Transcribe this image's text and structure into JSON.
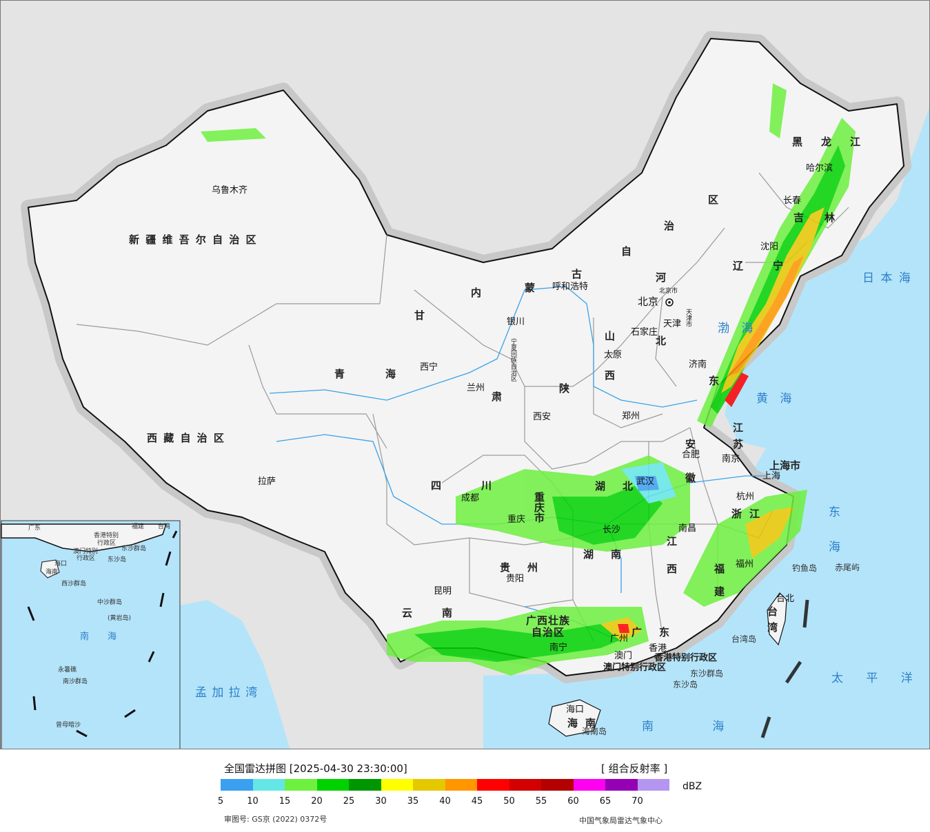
{
  "colors": {
    "ocean": "#b4e4fa",
    "outside": "#e4e4e4",
    "land": "#f4f4f4",
    "border": "#111111",
    "province_line": "#9a9a9a",
    "river": "#3aa2e8"
  },
  "provinces": [
    "新 疆 维 吾 尔 自 治 区",
    "西 藏 自 治 区",
    "青",
    "海",
    "甘",
    "肃",
    "内",
    "蒙",
    "古",
    "自",
    "治",
    "区",
    "黑",
    "龙",
    "江",
    "吉",
    "林",
    "辽",
    "宁",
    "河",
    "北",
    "山",
    "西",
    "东",
    "陕",
    "四",
    "川",
    "云",
    "南",
    "贵",
    "州",
    "湖",
    "北",
    "湖",
    "南",
    "江",
    "西",
    "安",
    "徽",
    "江",
    "苏",
    "浙",
    "江",
    "福",
    "建",
    "广",
    "东",
    "广西壮族",
    "自治区",
    "重庆市",
    "上海市",
    "宁夏回族自治区",
    "海",
    "南",
    "台",
    "湾"
  ],
  "cities": [
    "乌鲁木齐",
    "拉萨",
    "西宁",
    "兰州",
    "银川",
    "呼和浩特",
    "北京",
    "北京市",
    "天津",
    "天津市",
    "石家庄",
    "太原",
    "济南",
    "郑州",
    "西安",
    "成都",
    "重庆",
    "昆明",
    "贵阳",
    "南宁",
    "广州",
    "长沙",
    "武汉",
    "南昌",
    "合肥",
    "南京",
    "上海",
    "杭州",
    "福州",
    "台北",
    "哈尔滨",
    "长春",
    "沈阳",
    "香港",
    "澳门",
    "海口",
    "香港特别行政区",
    "澳门特别行政区"
  ],
  "seas": [
    "渤 海",
    "黄 海",
    "日 本 海",
    "东 海",
    "南 海",
    "太 平 洋",
    "孟 加 拉 湾"
  ],
  "islands": [
    "钓鱼岛",
    "赤尾屿",
    "台湾岛",
    "东沙群岛",
    "东沙岛",
    "海南岛"
  ],
  "inset": {
    "labels": [
      "广东",
      "福建",
      "台湾",
      "香港特别",
      "行政区",
      "澳门特别",
      "行政区",
      "东沙群岛",
      "东沙岛",
      "海口",
      "海南",
      "西沙群岛",
      "中沙群岛",
      "(黄岩岛)",
      "南",
      "海",
      "永暑礁",
      "南沙群岛",
      "曾母暗沙"
    ]
  },
  "legend": {
    "title": "全国雷达拼图 [2025-04-30 23:30:00]",
    "product": "[ 组合反射率 ]",
    "unit": "dBZ",
    "ticks": [
      "5",
      "10",
      "15",
      "20",
      "25",
      "30",
      "35",
      "40",
      "45",
      "50",
      "55",
      "60",
      "65",
      "70"
    ],
    "colors": [
      "#3ca0f0",
      "#64e6e6",
      "#6ef040",
      "#00d200",
      "#009600",
      "#ffff00",
      "#e6c800",
      "#ff9600",
      "#ff0000",
      "#d20000",
      "#b40000",
      "#ff00f0",
      "#9600b4",
      "#b496f0"
    ],
    "review_number": "审图号: GS京 (2022) 0372号",
    "credit": "中国气象局雷达气象中心"
  }
}
